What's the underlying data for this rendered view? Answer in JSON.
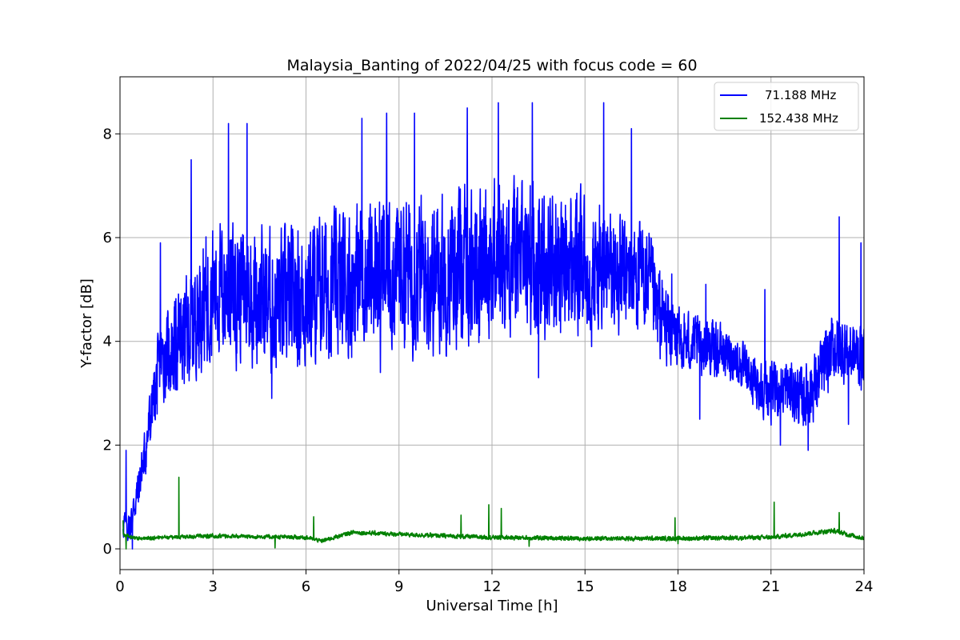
{
  "chart_data": {
    "type": "line",
    "title": "Malaysia_Banting of 2022/04/25 with focus code = 60",
    "xlabel": "Universal Time [h]",
    "ylabel": "Y-factor [dB]",
    "xlim": [
      0,
      24
    ],
    "ylim": [
      -0.4,
      9.1
    ],
    "xticks": [
      0,
      3,
      6,
      9,
      12,
      15,
      18,
      21,
      24
    ],
    "yticks": [
      0,
      2,
      4,
      6,
      8
    ],
    "grid": true,
    "legend_position": "top-right",
    "series": [
      {
        "name": "71.188 MHz",
        "color": "#0000ff",
        "kind": "noisy-line",
        "baseline": [
          [
            0.1,
            0.5
          ],
          [
            0.3,
            0.4
          ],
          [
            0.6,
            1.2
          ],
          [
            0.8,
            1.8
          ],
          [
            1.0,
            2.6
          ],
          [
            1.3,
            3.6
          ],
          [
            1.8,
            3.9
          ],
          [
            2.2,
            4.2
          ],
          [
            2.6,
            4.7
          ],
          [
            3.0,
            5.0
          ],
          [
            4.0,
            5.0
          ],
          [
            5.0,
            4.7
          ],
          [
            6.0,
            4.9
          ],
          [
            7.0,
            5.1
          ],
          [
            8.0,
            5.3
          ],
          [
            9.0,
            5.4
          ],
          [
            10.0,
            5.3
          ],
          [
            11.0,
            5.4
          ],
          [
            12.0,
            5.6
          ],
          [
            13.0,
            5.6
          ],
          [
            14.0,
            5.5
          ],
          [
            15.0,
            5.4
          ],
          [
            16.0,
            5.3
          ],
          [
            17.0,
            5.2
          ],
          [
            17.3,
            4.6
          ],
          [
            18.0,
            4.0
          ],
          [
            19.0,
            3.9
          ],
          [
            19.8,
            3.7
          ],
          [
            20.3,
            3.3
          ],
          [
            21.0,
            3.0
          ],
          [
            21.5,
            3.1
          ],
          [
            22.0,
            2.9
          ],
          [
            22.5,
            3.2
          ],
          [
            23.0,
            3.9
          ],
          [
            24.0,
            3.7
          ]
        ],
        "amplitude": [
          [
            0.1,
            0.4
          ],
          [
            0.6,
            0.5
          ],
          [
            1.0,
            0.8
          ],
          [
            1.5,
            1.1
          ],
          [
            2.2,
            1.4
          ],
          [
            3.0,
            1.7
          ],
          [
            6.0,
            1.8
          ],
          [
            9.0,
            1.9
          ],
          [
            12.0,
            2.0
          ],
          [
            15.0,
            1.8
          ],
          [
            17.2,
            1.3
          ],
          [
            18.0,
            0.8
          ],
          [
            20.0,
            0.6
          ],
          [
            21.0,
            0.7
          ],
          [
            23.0,
            0.9
          ],
          [
            24.0,
            0.8
          ]
        ],
        "peaks": [
          [
            0.2,
            1.9
          ],
          [
            1.3,
            5.9
          ],
          [
            2.3,
            7.5
          ],
          [
            3.5,
            8.2
          ],
          [
            4.1,
            8.2
          ],
          [
            7.8,
            8.3
          ],
          [
            8.6,
            8.4
          ],
          [
            9.5,
            8.4
          ],
          [
            11.2,
            8.5
          ],
          [
            12.2,
            8.6
          ],
          [
            13.3,
            8.6
          ],
          [
            15.6,
            8.6
          ],
          [
            16.5,
            8.1
          ],
          [
            17.8,
            5.3
          ],
          [
            18.9,
            5.1
          ],
          [
            20.8,
            5.0
          ],
          [
            23.2,
            6.4
          ],
          [
            23.9,
            5.9
          ]
        ],
        "troughs": [
          [
            0.4,
            0.0
          ],
          [
            1.2,
            2.6
          ],
          [
            4.9,
            2.9
          ],
          [
            8.4,
            3.4
          ],
          [
            13.5,
            3.3
          ],
          [
            18.7,
            2.5
          ],
          [
            21.3,
            2.0
          ],
          [
            22.2,
            1.9
          ],
          [
            23.5,
            2.4
          ]
        ]
      },
      {
        "name": "152.438 MHz",
        "color": "#008000",
        "kind": "noisy-line",
        "baseline": [
          [
            0.0,
            0.3
          ],
          [
            0.5,
            0.2
          ],
          [
            3.0,
            0.25
          ],
          [
            6.0,
            0.22
          ],
          [
            6.5,
            0.15
          ],
          [
            7.5,
            0.32
          ],
          [
            9.0,
            0.28
          ],
          [
            12.0,
            0.22
          ],
          [
            15.0,
            0.2
          ],
          [
            18.0,
            0.2
          ],
          [
            21.0,
            0.22
          ],
          [
            23.0,
            0.35
          ],
          [
            24.0,
            0.2
          ]
        ],
        "amplitude": [
          [
            0.0,
            0.05
          ],
          [
            24.0,
            0.06
          ]
        ],
        "peaks": [
          [
            0.1,
            0.55
          ],
          [
            1.9,
            1.38
          ],
          [
            6.25,
            0.62
          ],
          [
            11.0,
            0.65
          ],
          [
            11.9,
            0.85
          ],
          [
            12.3,
            0.78
          ],
          [
            17.9,
            0.6
          ],
          [
            21.1,
            0.9
          ],
          [
            23.2,
            0.7
          ]
        ],
        "troughs": [
          [
            0.2,
            0.0
          ],
          [
            5.0,
            0.02
          ],
          [
            13.2,
            0.05
          ],
          [
            18.0,
            0.1
          ]
        ]
      }
    ]
  }
}
